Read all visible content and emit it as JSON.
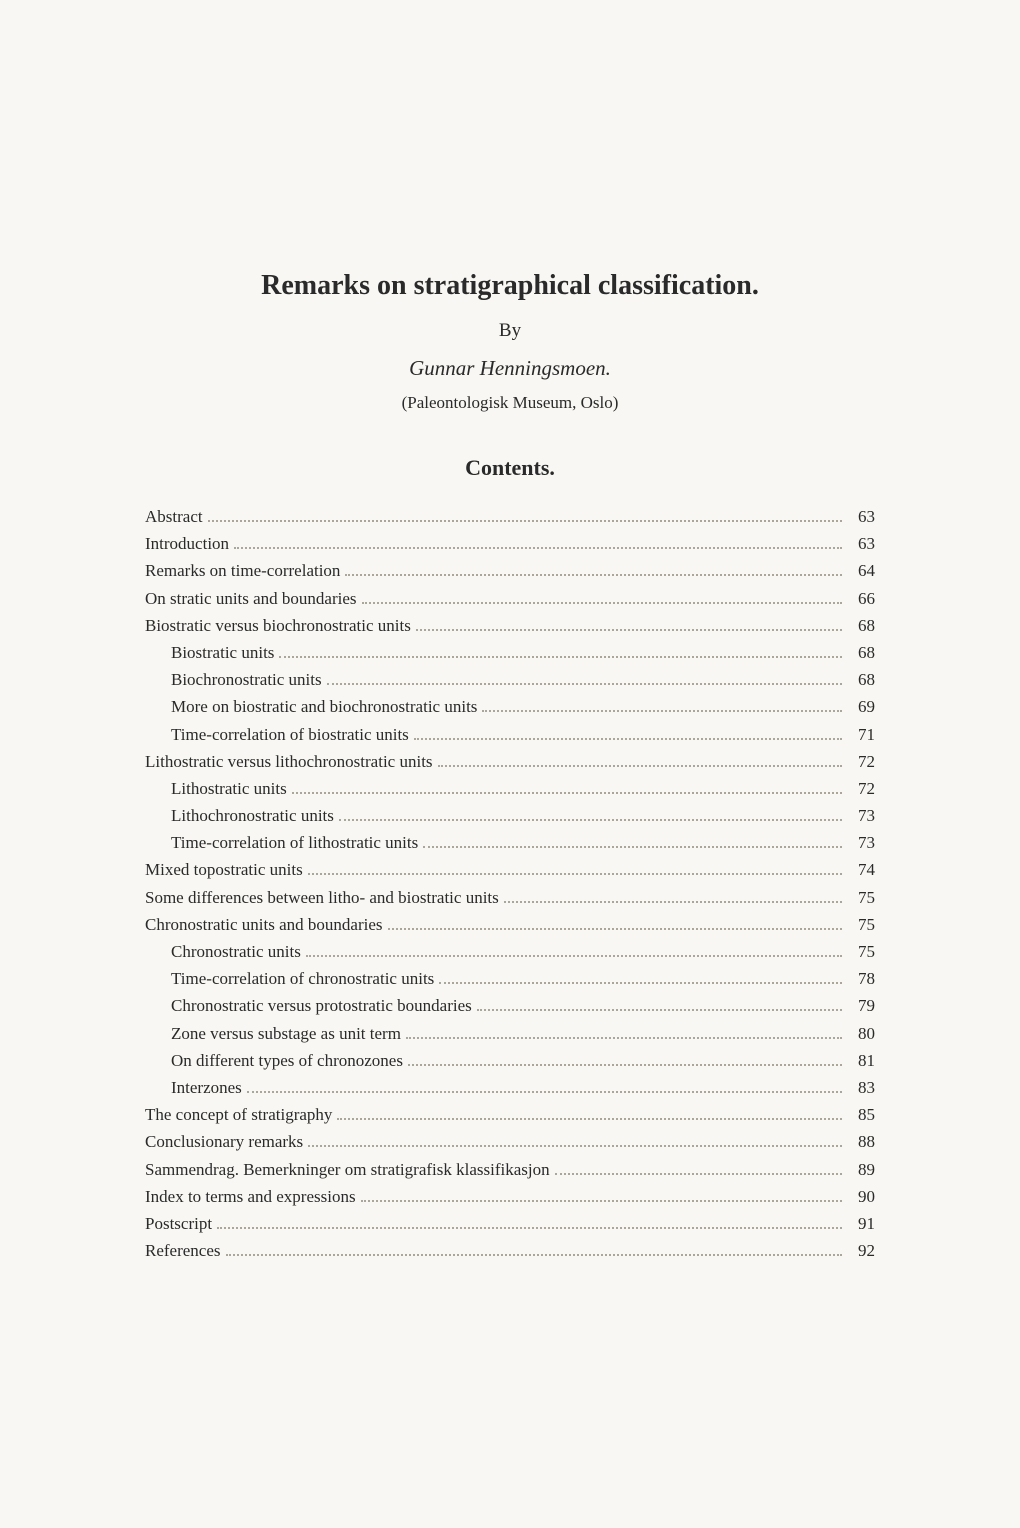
{
  "title": "Remarks on stratigraphical classification.",
  "by": "By",
  "author": "Gunnar Henningsmoen.",
  "affiliation": "(Paleontologisk Museum, Oslo)",
  "contents_heading": "Contents.",
  "toc": [
    {
      "label": "Abstract",
      "page": "63",
      "indent": 0
    },
    {
      "label": "Introduction",
      "page": "63",
      "indent": 0
    },
    {
      "label": "Remarks on time-correlation",
      "page": "64",
      "indent": 0
    },
    {
      "label": "On stratic units and boundaries",
      "page": "66",
      "indent": 0
    },
    {
      "label": "Biostratic versus biochronostratic units",
      "page": "68",
      "indent": 0
    },
    {
      "label": "Biostratic units",
      "page": "68",
      "indent": 1
    },
    {
      "label": "Biochronostratic units",
      "page": "68",
      "indent": 1
    },
    {
      "label": "More on biostratic and biochronostratic units",
      "page": "69",
      "indent": 1
    },
    {
      "label": "Time-correlation of biostratic units",
      "page": "71",
      "indent": 1
    },
    {
      "label": "Lithostratic versus lithochronostratic units",
      "page": "72",
      "indent": 0
    },
    {
      "label": "Lithostratic units",
      "page": "72",
      "indent": 1
    },
    {
      "label": "Lithochronostratic units",
      "page": "73",
      "indent": 1
    },
    {
      "label": "Time-correlation of lithostratic units",
      "page": "73",
      "indent": 1
    },
    {
      "label": "Mixed topostratic units",
      "page": "74",
      "indent": 0
    },
    {
      "label": "Some differences between litho- and biostratic units",
      "page": "75",
      "indent": 0
    },
    {
      "label": "Chronostratic units and boundaries",
      "page": "75",
      "indent": 0
    },
    {
      "label": "Chronostratic units",
      "page": "75",
      "indent": 1
    },
    {
      "label": "Time-correlation of chronostratic units",
      "page": "78",
      "indent": 1
    },
    {
      "label": "Chronostratic versus protostratic boundaries",
      "page": "79",
      "indent": 1
    },
    {
      "label": "Zone versus substage as unit term",
      "page": "80",
      "indent": 1
    },
    {
      "label": "On different types of chronozones",
      "page": "81",
      "indent": 1
    },
    {
      "label": "Interzones",
      "page": "83",
      "indent": 1
    },
    {
      "label": "The concept of stratigraphy",
      "page": "85",
      "indent": 0
    },
    {
      "label": "Conclusionary remarks",
      "page": "88",
      "indent": 0
    },
    {
      "label": "Sammendrag. Bemerkninger om stratigrafisk klassifikasjon",
      "page": "89",
      "indent": 0
    },
    {
      "label": "Index to terms and expressions",
      "page": "90",
      "indent": 0
    },
    {
      "label": "Postscript",
      "page": "91",
      "indent": 0
    },
    {
      "label": "References",
      "page": "92",
      "indent": 0
    }
  ],
  "colors": {
    "background": "#f8f7f3",
    "text": "#2a2a2a",
    "leader": "#aaa69a"
  },
  "typography": {
    "title_fontsize": 28,
    "by_fontsize": 19,
    "author_fontsize": 21,
    "affiliation_fontsize": 17,
    "contents_heading_fontsize": 22,
    "toc_fontsize": 17,
    "font_family": "Garamond, Georgia, Times New Roman, serif"
  }
}
